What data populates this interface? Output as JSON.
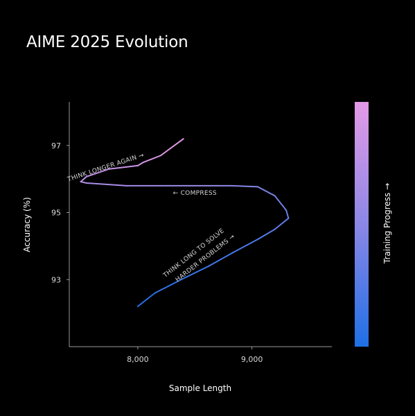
{
  "chart_data": {
    "type": "line",
    "title": "AIME 2025 Evolution",
    "xlabel": "Sample Length",
    "ylabel": "Accuracy (%)",
    "colorbar_label": "Training Progress →",
    "xlim": [
      7400,
      9700
    ],
    "ylim": [
      91.0,
      98.3
    ],
    "x_ticks": [
      8000,
      9000
    ],
    "x_tick_labels": [
      "8,000",
      "9,000"
    ],
    "y_ticks": [
      93,
      95,
      97
    ],
    "y_tick_labels": [
      "93",
      "95",
      "97"
    ],
    "grid": false,
    "colormap": [
      "#1f6fe6",
      "#8b87e6",
      "#e49ae6"
    ],
    "series": [
      {
        "x": [
          8000,
          8150,
          8380,
          8620,
          8830,
          9050,
          9200,
          9320,
          9300,
          9200,
          9050,
          8820,
          8700,
          8200,
          7900,
          7550,
          7500,
          7550,
          7750,
          8000,
          8050,
          8200,
          8400
        ],
        "y": [
          92.2,
          92.6,
          93.0,
          93.4,
          93.8,
          94.2,
          94.5,
          94.83,
          95.07,
          95.5,
          95.77,
          95.8,
          95.8,
          95.8,
          95.8,
          95.88,
          95.92,
          96.07,
          96.3,
          96.4,
          96.5,
          96.7,
          97.2
        ]
      }
    ],
    "annotations": [
      {
        "text": "THINK LONG TO SOLVE",
        "x": 8500,
        "y": 93.75,
        "angle": -38
      },
      {
        "text": "HARDER PROBLEMS →",
        "x": 8600,
        "y": 93.6,
        "angle": -38
      },
      {
        "text": "← COMPRESS",
        "x": 8500,
        "y": 95.53,
        "angle": 0
      },
      {
        "text": "THINK LONGER AGAIN →",
        "x": 7725,
        "y": 96.3,
        "angle": -18
      }
    ]
  }
}
